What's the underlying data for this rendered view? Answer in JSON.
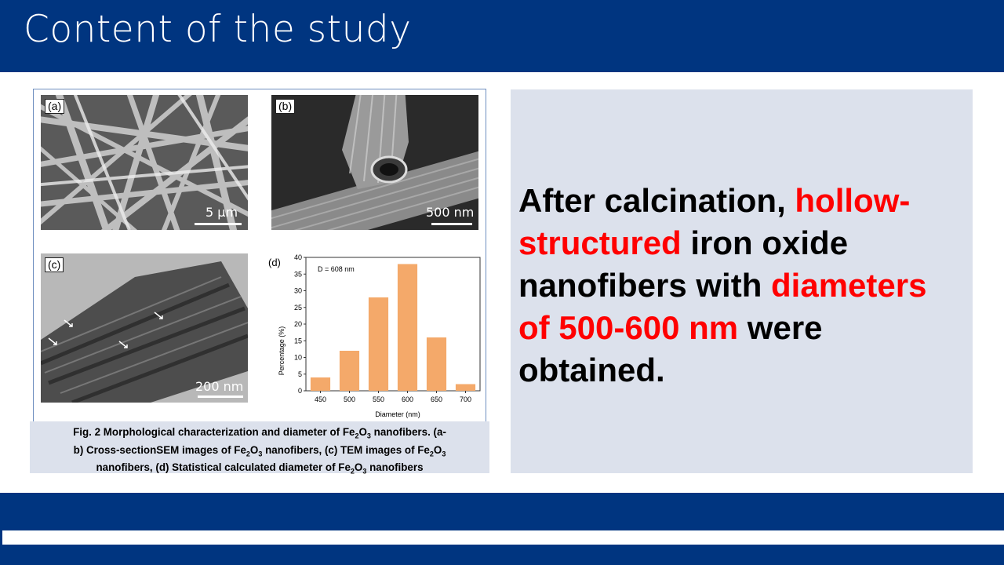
{
  "header": {
    "title": "Content of the study"
  },
  "figure": {
    "panels": {
      "a": {
        "label": "(a)",
        "scale": "5 μm"
      },
      "b": {
        "label": "(b)",
        "scale": "500 nm"
      },
      "c": {
        "label": "(c)",
        "scale": "200 nm"
      },
      "d": {
        "label": "(d)"
      }
    },
    "caption": {
      "line1": "Fig. 2 Morphological characterization and diameter of Fe",
      "line1_sub1": "2",
      "line1_o": "O",
      "line1_sub2": "3",
      "line1_end": " nanofibers. (a-",
      "line2a": "b) Cross-sectionSEM images of Fe",
      "line2b": " nanofibers, (c) TEM images of Fe",
      "line3a": "nanofibers, (d) Statistical calculated diameter of Fe",
      "line3b": " nanofibers"
    }
  },
  "chart_data": {
    "type": "bar",
    "annotation": "D = 608 nm",
    "categories": [
      "450",
      "500",
      "550",
      "600",
      "650",
      "700"
    ],
    "values": [
      4,
      12,
      28,
      38,
      16,
      2
    ],
    "xlabel": "Diameter (nm)",
    "ylabel": "Percentage (%)",
    "ylim": [
      0,
      40
    ],
    "yticks": [
      "0",
      "5",
      "10",
      "15",
      "20",
      "25",
      "30",
      "35",
      "40"
    ],
    "bar_color": "#f4a96a"
  },
  "main": {
    "t1": "After calcination, ",
    "t2": "hollow-structured",
    "t3": " iron oxide nanofibers with ",
    "t4": "diameters of 500-600 nm",
    "t5": " were obtained."
  }
}
